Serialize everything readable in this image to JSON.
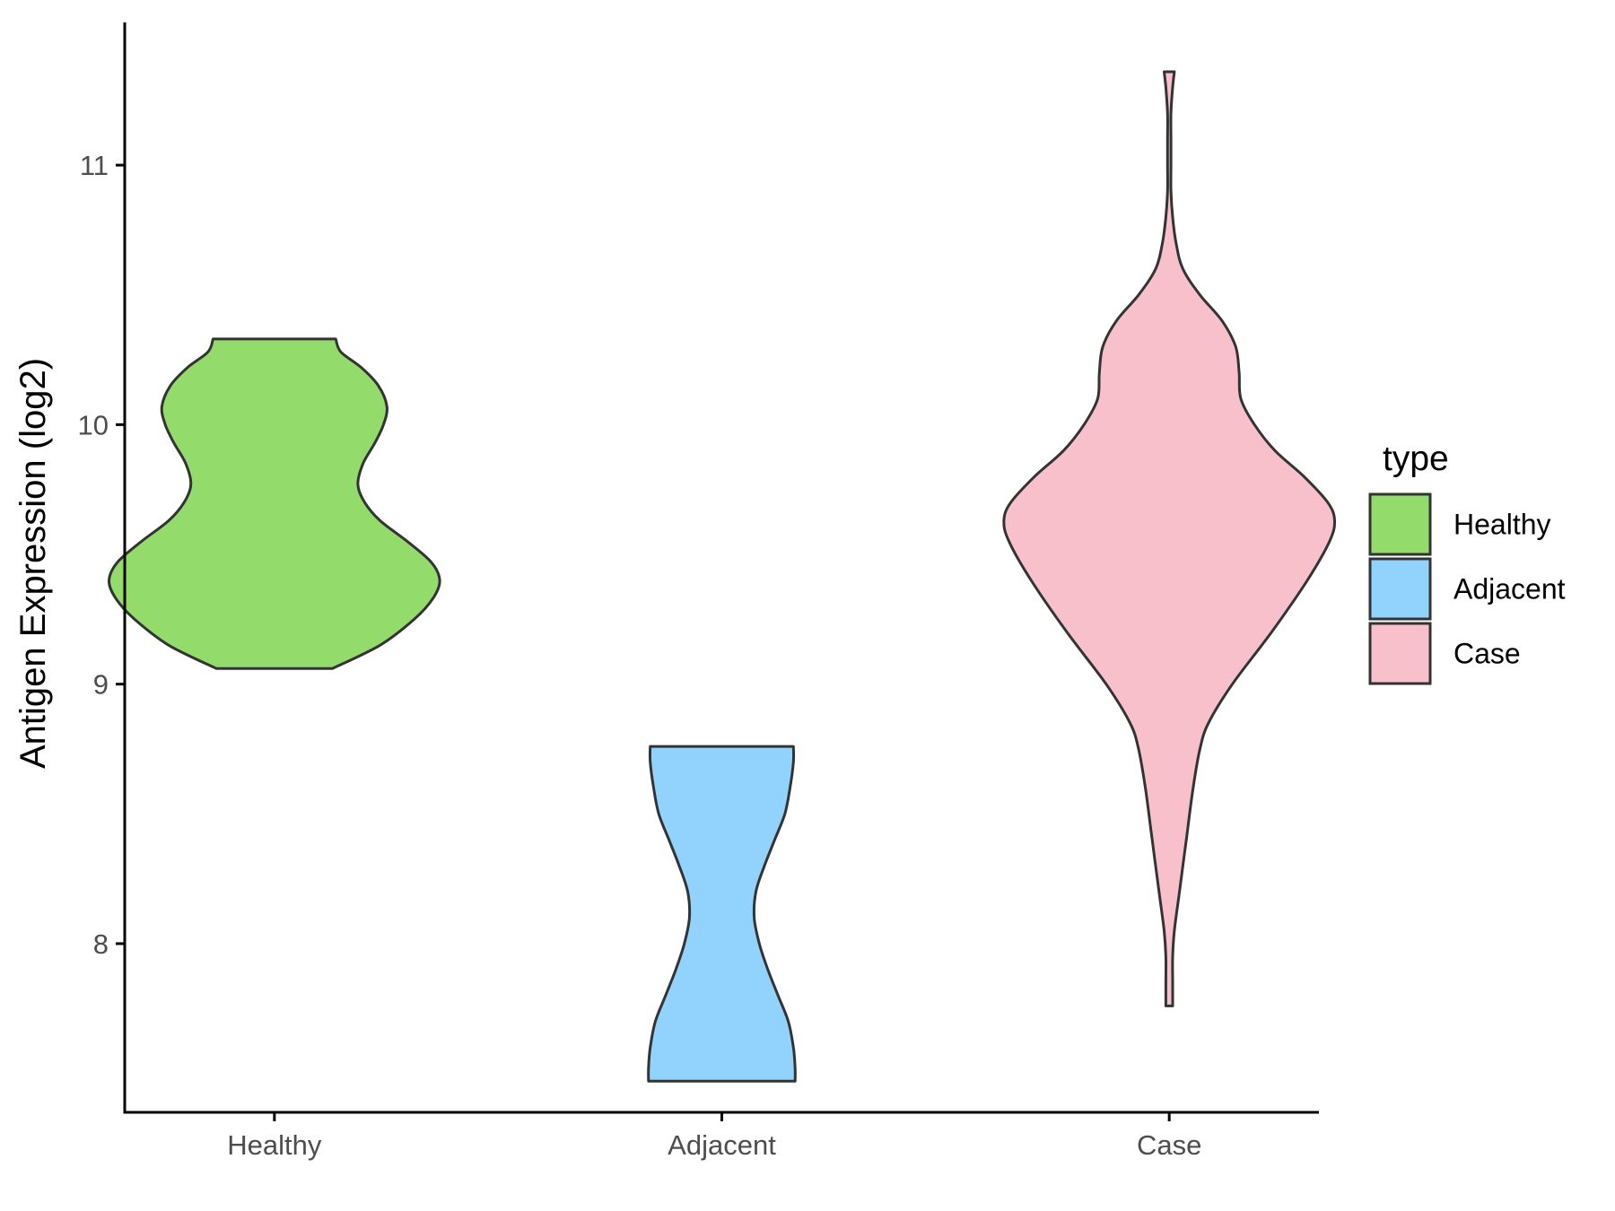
{
  "chart_data": {
    "type": "violin",
    "xlabel": "",
    "ylabel": "Antigen Expression (log2)",
    "categories": [
      "Healthy",
      "Adjacent",
      "Case"
    ],
    "ylim": [
      7.35,
      11.55
    ],
    "yticks": [
      8,
      9,
      10,
      11
    ],
    "ytick_labels": [
      "8",
      "9",
      "10",
      "11"
    ],
    "grid": false,
    "legend": {
      "title": "type",
      "position": "right",
      "entries": [
        "Healthy",
        "Adjacent",
        "Case"
      ]
    },
    "series": [
      {
        "category": "Healthy",
        "color": "#93DC6B",
        "min": 9.06,
        "max": 10.33,
        "density": [
          [
            9.06,
            0.34
          ],
          [
            9.15,
            0.62
          ],
          [
            9.25,
            0.82
          ],
          [
            9.33,
            0.93
          ],
          [
            9.4,
            0.97
          ],
          [
            9.47,
            0.92
          ],
          [
            9.55,
            0.78
          ],
          [
            9.63,
            0.62
          ],
          [
            9.7,
            0.53
          ],
          [
            9.77,
            0.49
          ],
          [
            9.85,
            0.52
          ],
          [
            9.93,
            0.59
          ],
          [
            10.0,
            0.64
          ],
          [
            10.07,
            0.66
          ],
          [
            10.15,
            0.61
          ],
          [
            10.22,
            0.51
          ],
          [
            10.28,
            0.39
          ],
          [
            10.33,
            0.36
          ]
        ]
      },
      {
        "category": "Adjacent",
        "color": "#92D3FE",
        "min": 7.47,
        "max": 8.76,
        "density": [
          [
            7.47,
            0.43
          ],
          [
            7.52,
            0.43
          ],
          [
            7.6,
            0.42
          ],
          [
            7.7,
            0.39
          ],
          [
            7.8,
            0.33
          ],
          [
            7.9,
            0.27
          ],
          [
            8.0,
            0.22
          ],
          [
            8.1,
            0.19
          ],
          [
            8.2,
            0.2
          ],
          [
            8.3,
            0.25
          ],
          [
            8.4,
            0.31
          ],
          [
            8.5,
            0.37
          ],
          [
            8.6,
            0.4
          ],
          [
            8.7,
            0.42
          ],
          [
            8.76,
            0.42
          ]
        ]
      },
      {
        "category": "Case",
        "color": "#F7C0CB",
        "min": 7.76,
        "max": 11.36,
        "density": [
          [
            7.76,
            0.02
          ],
          [
            7.85,
            0.02
          ],
          [
            7.95,
            0.02
          ],
          [
            8.05,
            0.03
          ],
          [
            8.2,
            0.06
          ],
          [
            8.4,
            0.1
          ],
          [
            8.6,
            0.14
          ],
          [
            8.75,
            0.18
          ],
          [
            8.85,
            0.23
          ],
          [
            9.0,
            0.37
          ],
          [
            9.2,
            0.6
          ],
          [
            9.4,
            0.81
          ],
          [
            9.55,
            0.94
          ],
          [
            9.63,
            0.97
          ],
          [
            9.7,
            0.93
          ],
          [
            9.8,
            0.79
          ],
          [
            9.9,
            0.62
          ],
          [
            10.0,
            0.5
          ],
          [
            10.1,
            0.42
          ],
          [
            10.2,
            0.41
          ],
          [
            10.3,
            0.39
          ],
          [
            10.4,
            0.31
          ],
          [
            10.5,
            0.18
          ],
          [
            10.6,
            0.08
          ],
          [
            10.7,
            0.04
          ],
          [
            10.8,
            0.02
          ],
          [
            10.9,
            0.01
          ],
          [
            11.0,
            0.01
          ],
          [
            11.1,
            0.01
          ],
          [
            11.2,
            0.01
          ],
          [
            11.3,
            0.02
          ],
          [
            11.36,
            0.03
          ]
        ]
      }
    ]
  }
}
